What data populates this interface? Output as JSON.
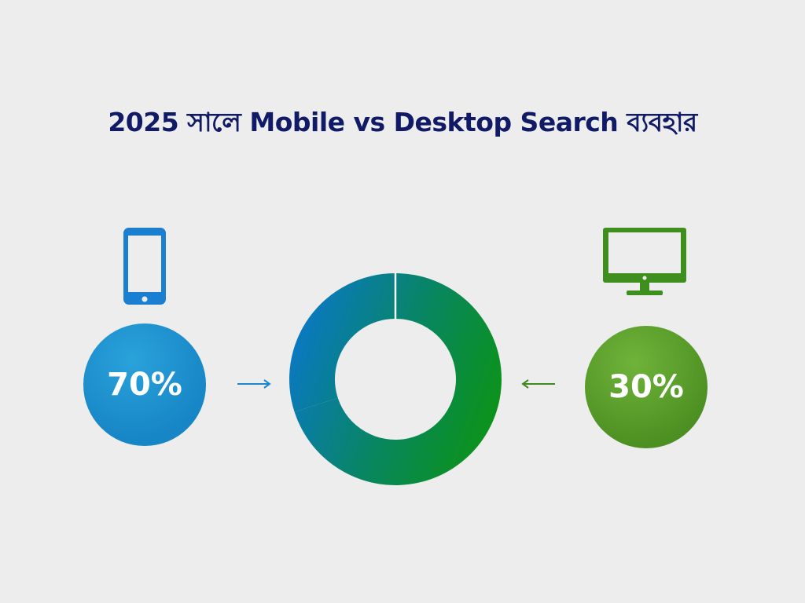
{
  "title": "2025 সালে Mobile vs Desktop Search ব্যবহার",
  "chart_data": {
    "type": "pie",
    "style": "donut",
    "categories": [
      "Mobile",
      "Desktop"
    ],
    "values": [
      70,
      30
    ],
    "labels": [
      "70%",
      "30%"
    ],
    "colors": {
      "mobile": "#1786c6",
      "desktop": "#4c8f22",
      "ring_start": "#0a78c8",
      "ring_end": "#0a9020"
    },
    "icons": {
      "mobile": "smartphone-icon",
      "desktop": "monitor-icon"
    }
  }
}
